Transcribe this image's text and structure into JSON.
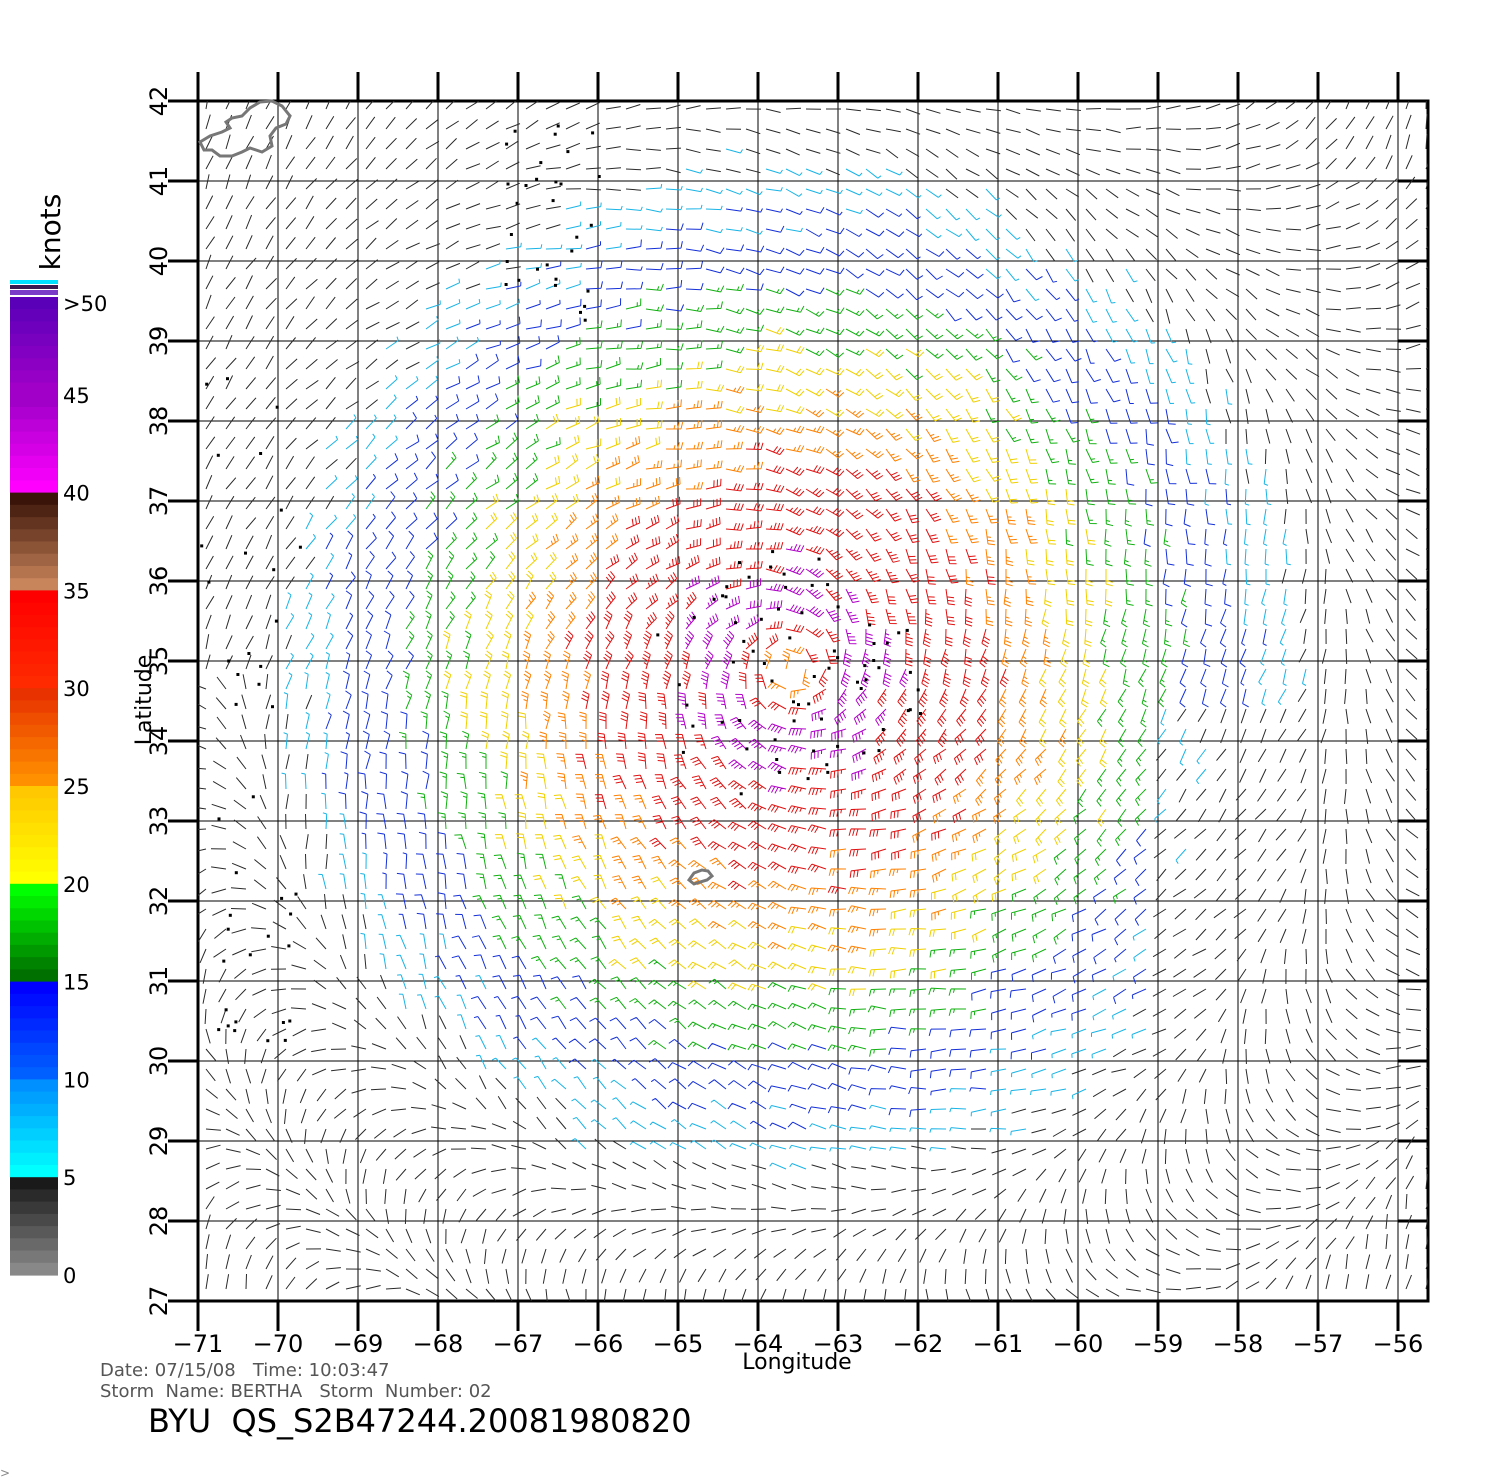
{
  "map": {
    "lon_range": [
      -71,
      -56
    ],
    "lat_range": [
      27,
      42
    ],
    "lon_ticks": [
      "−71",
      "−70",
      "−69",
      "−68",
      "−67",
      "−66",
      "−65",
      "−64",
      "−63",
      "−62",
      "−61",
      "−60",
      "−59",
      "−58",
      "−57",
      "−56"
    ],
    "lat_ticks": [
      "27",
      "28",
      "29",
      "30",
      "31",
      "32",
      "33",
      "34",
      "35",
      "36",
      "37",
      "38",
      "39",
      "40",
      "41",
      "42"
    ],
    "xlabel": "Longitude",
    "ylabel": "Latitude",
    "storm_center": {
      "lon": -63.6,
      "lat": 34.9
    },
    "islands": [
      {
        "name": "Bermuda",
        "lon": -64.75,
        "lat": 32.3
      },
      {
        "name": "Cape Cod / Nantucket",
        "lon": -70.4,
        "lat": 41.6
      }
    ]
  },
  "colorbar": {
    "unit": "knots",
    "labels": [
      ">50",
      "45",
      "40",
      "35",
      "30",
      "25",
      "20",
      "15",
      "10",
      "5",
      "0"
    ],
    "bands": [
      {
        "min": 45,
        "max": 50,
        "colors": [
          "#5a00b8",
          "#a000c8"
        ]
      },
      {
        "min": 40,
        "max": 45,
        "colors": [
          "#a000c8",
          "#ff00ff"
        ]
      },
      {
        "min": 35,
        "max": 40,
        "colors": [
          "#3a1408",
          "#c8845a"
        ]
      },
      {
        "min": 30,
        "max": 35,
        "colors": [
          "#ff0000",
          "#ff2a00"
        ]
      },
      {
        "min": 25,
        "max": 30,
        "colors": [
          "#e83200",
          "#ff9000"
        ]
      },
      {
        "min": 20,
        "max": 25,
        "colors": [
          "#ffc800",
          "#ffff00"
        ]
      },
      {
        "min": 15,
        "max": 20,
        "colors": [
          "#00ff00",
          "#007000"
        ]
      },
      {
        "min": 10,
        "max": 15,
        "colors": [
          "#0000ff",
          "#0060ff"
        ]
      },
      {
        "min": 5,
        "max": 10,
        "colors": [
          "#0090ff",
          "#00ffff"
        ]
      },
      {
        "min": 0,
        "max": 5,
        "colors": [
          "#1a1a1a",
          "#888888"
        ]
      }
    ]
  },
  "footer": {
    "date_line": "Date: 07/15/08   Time: 10:03:47",
    "storm_line": "Storm  Name: BERTHA   Storm  Number: 02",
    "file_id": "BYU  QS_S2B47244.20081980820",
    "corner_mark": ">"
  },
  "wind_colors": {
    "calm": "#2a2a2a",
    "light": "#19b4e6",
    "moderate": "#1430d8",
    "fresh": "#10b010",
    "strong": "#f0d000",
    "gale": "#ff8000",
    "storm": "#e01010",
    "severe": "#b000c8",
    "extreme": "#5a00c8"
  }
}
